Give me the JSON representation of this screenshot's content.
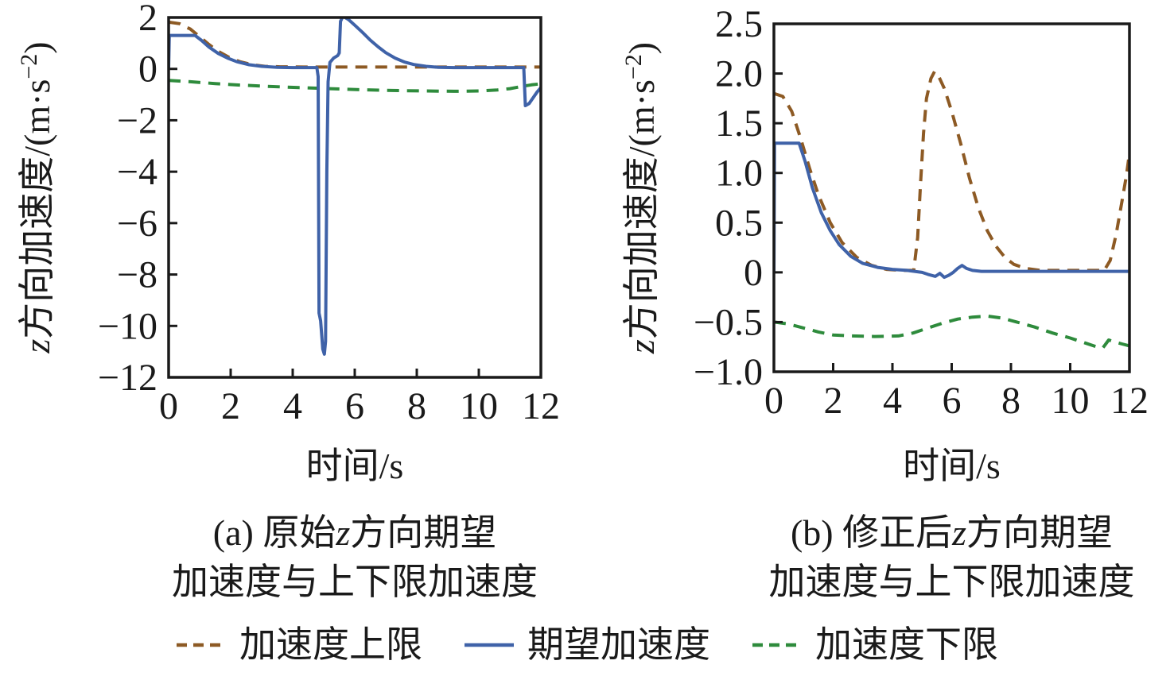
{
  "colors": {
    "background": "#ffffff",
    "axis": "#1a1a1a",
    "text": "#1a1a1a",
    "blue": "#3f62a8",
    "brown": "#8d5a24",
    "green": "#2e8b3c"
  },
  "legend": {
    "items": [
      {
        "key": "upper-limit",
        "label": "加速度上限",
        "color": "#8d5a24",
        "dashed": true
      },
      {
        "key": "desired-accel",
        "label": "期望加速度",
        "color": "#3f62a8",
        "dashed": false
      },
      {
        "key": "lower-limit",
        "label": "加速度下限",
        "color": "#2e8b3c",
        "dashed": true
      }
    ]
  },
  "chart_data": [
    {
      "id": "a",
      "type": "line",
      "xlabel": "时间/s",
      "ylabel_parts": [
        {
          "t": "z",
          "italic": true
        },
        {
          "t": "方向加速度/(m·s"
        },
        {
          "t": "−2",
          "sup": true
        },
        {
          "t": ")"
        }
      ],
      "caption_lines": [
        [
          {
            "t": "(a) 原始"
          },
          {
            "t": "z",
            "italic": true
          },
          {
            "t": "方向期望"
          }
        ],
        [
          {
            "t": "加速度与上下限加速度"
          }
        ]
      ],
      "xlim": [
        0,
        12
      ],
      "ylim": [
        -12,
        2
      ],
      "xticks": [
        0,
        2,
        4,
        6,
        8,
        10,
        12
      ],
      "xticklabels": [
        "0",
        "2",
        "4",
        "6",
        "8",
        "10",
        "12"
      ],
      "yticks": [
        2,
        0,
        -2,
        -4,
        -6,
        -8,
        -10,
        -12
      ],
      "yticklabels": [
        "2",
        "0",
        "−2",
        "−4",
        "−6",
        "−8",
        "−10",
        "−12"
      ],
      "grid": false,
      "series": [
        {
          "key": "upper-limit",
          "name": "加速度上限",
          "color": "#8d5a24",
          "dashed": true,
          "points": [
            [
              0,
              1.82
            ],
            [
              0.35,
              1.76
            ],
            [
              0.7,
              1.55
            ],
            [
              1.0,
              1.25
            ],
            [
              1.3,
              0.95
            ],
            [
              1.6,
              0.68
            ],
            [
              1.95,
              0.45
            ],
            [
              2.3,
              0.28
            ],
            [
              2.7,
              0.16
            ],
            [
              3.1,
              0.1
            ],
            [
              3.6,
              0.08
            ],
            [
              4.5,
              0.07
            ],
            [
              6,
              0.07
            ],
            [
              8,
              0.07
            ],
            [
              10,
              0.07
            ],
            [
              12,
              0.07
            ]
          ]
        },
        {
          "key": "lower-limit",
          "name": "加速度下限",
          "color": "#2e8b3c",
          "dashed": true,
          "points": [
            [
              0,
              -0.45
            ],
            [
              0.7,
              -0.5
            ],
            [
              1.5,
              -0.57
            ],
            [
              2.3,
              -0.63
            ],
            [
              3.2,
              -0.68
            ],
            [
              4.2,
              -0.73
            ],
            [
              5.2,
              -0.77
            ],
            [
              6.2,
              -0.81
            ],
            [
              7.2,
              -0.84
            ],
            [
              8.2,
              -0.86
            ],
            [
              9.2,
              -0.87
            ],
            [
              10.0,
              -0.86
            ],
            [
              10.6,
              -0.82
            ],
            [
              11.0,
              -0.77
            ],
            [
              11.4,
              -0.68
            ],
            [
              11.7,
              -0.62
            ],
            [
              12,
              -0.58
            ]
          ]
        },
        {
          "key": "desired-accel",
          "name": "期望加速度",
          "color": "#3f62a8",
          "dashed": false,
          "points": [
            [
              0,
              0
            ],
            [
              0.02,
              1.3
            ],
            [
              0.85,
              1.3
            ],
            [
              1.05,
              1.12
            ],
            [
              1.3,
              0.85
            ],
            [
              1.6,
              0.6
            ],
            [
              1.9,
              0.42
            ],
            [
              2.2,
              0.28
            ],
            [
              2.6,
              0.16
            ],
            [
              3.0,
              0.1
            ],
            [
              3.5,
              0.06
            ],
            [
              4.0,
              0.05
            ],
            [
              4.78,
              0.05
            ],
            [
              4.82,
              -0.3
            ],
            [
              4.85,
              -9.5
            ],
            [
              4.9,
              -9.8
            ],
            [
              4.97,
              -10.9
            ],
            [
              5.02,
              -11.1
            ],
            [
              5.06,
              -10.6
            ],
            [
              5.1,
              -4.0
            ],
            [
              5.14,
              -0.5
            ],
            [
              5.2,
              0.25
            ],
            [
              5.32,
              0.42
            ],
            [
              5.45,
              0.52
            ],
            [
              5.5,
              0.62
            ],
            [
              5.54,
              1.85
            ],
            [
              5.62,
              2.05
            ],
            [
              5.8,
              1.92
            ],
            [
              6.0,
              1.7
            ],
            [
              6.25,
              1.42
            ],
            [
              6.5,
              1.12
            ],
            [
              6.75,
              0.86
            ],
            [
              7.0,
              0.63
            ],
            [
              7.3,
              0.42
            ],
            [
              7.6,
              0.27
            ],
            [
              7.9,
              0.17
            ],
            [
              8.3,
              0.1
            ],
            [
              8.7,
              0.06
            ],
            [
              9.2,
              0.05
            ],
            [
              10,
              0.05
            ],
            [
              11.45,
              0.05
            ],
            [
              11.5,
              -1.43
            ],
            [
              11.62,
              -1.35
            ],
            [
              11.75,
              -1.12
            ],
            [
              11.88,
              -0.9
            ],
            [
              12,
              -0.73
            ]
          ]
        }
      ]
    },
    {
      "id": "b",
      "type": "line",
      "xlabel": "时间/s",
      "ylabel_parts": [
        {
          "t": "z",
          "italic": true
        },
        {
          "t": "方向加速度/(m·s"
        },
        {
          "t": "−2",
          "sup": true
        },
        {
          "t": ")"
        }
      ],
      "caption_lines": [
        [
          {
            "t": "(b) 修正后"
          },
          {
            "t": "z",
            "italic": true
          },
          {
            "t": "方向期望"
          }
        ],
        [
          {
            "t": "加速度与上下限加速度"
          }
        ]
      ],
      "xlim": [
        0,
        12
      ],
      "ylim": [
        -1.0,
        2.5
      ],
      "xticks": [
        0,
        2,
        4,
        6,
        8,
        10,
        12
      ],
      "xticklabels": [
        "0",
        "2",
        "4",
        "6",
        "8",
        "10",
        "12"
      ],
      "yticks": [
        2.5,
        2.0,
        1.5,
        1.0,
        0.5,
        0,
        -0.5,
        -1.0
      ],
      "yticklabels": [
        "2.5",
        "2.0",
        "1.5",
        "1.0",
        "0.5",
        "0",
        "−0.5",
        "−1.0"
      ],
      "grid": false,
      "series": [
        {
          "key": "upper-limit",
          "name": "加速度上限",
          "color": "#8d5a24",
          "dashed": true,
          "points": [
            [
              0,
              1.8
            ],
            [
              0.3,
              1.77
            ],
            [
              0.6,
              1.62
            ],
            [
              0.9,
              1.35
            ],
            [
              1.2,
              1.05
            ],
            [
              1.5,
              0.78
            ],
            [
              1.9,
              0.5
            ],
            [
              2.3,
              0.3
            ],
            [
              2.8,
              0.15
            ],
            [
              3.3,
              0.07
            ],
            [
              3.8,
              0.03
            ],
            [
              4.3,
              0.02
            ],
            [
              4.72,
              0.02
            ],
            [
              4.85,
              0.35
            ],
            [
              4.95,
              0.9
            ],
            [
              5.05,
              1.4
            ],
            [
              5.15,
              1.75
            ],
            [
              5.3,
              1.95
            ],
            [
              5.42,
              2.02
            ],
            [
              5.55,
              1.98
            ],
            [
              5.75,
              1.85
            ],
            [
              6.0,
              1.62
            ],
            [
              6.3,
              1.3
            ],
            [
              6.6,
              0.95
            ],
            [
              6.9,
              0.65
            ],
            [
              7.2,
              0.42
            ],
            [
              7.5,
              0.26
            ],
            [
              7.8,
              0.15
            ],
            [
              8.1,
              0.08
            ],
            [
              8.5,
              0.04
            ],
            [
              9.0,
              0.02
            ],
            [
              10,
              0.02
            ],
            [
              11.15,
              0.02
            ],
            [
              11.35,
              0.12
            ],
            [
              11.55,
              0.38
            ],
            [
              11.75,
              0.72
            ],
            [
              11.9,
              0.98
            ],
            [
              12,
              1.2
            ]
          ]
        },
        {
          "key": "lower-limit",
          "name": "加速度下限",
          "color": "#2e8b3c",
          "dashed": true,
          "points": [
            [
              0,
              -0.5
            ],
            [
              0.5,
              -0.52
            ],
            [
              1.0,
              -0.56
            ],
            [
              1.5,
              -0.6
            ],
            [
              2.0,
              -0.63
            ],
            [
              2.6,
              -0.64
            ],
            [
              3.4,
              -0.645
            ],
            [
              4.2,
              -0.64
            ],
            [
              4.7,
              -0.61
            ],
            [
              5.2,
              -0.56
            ],
            [
              5.7,
              -0.51
            ],
            [
              6.2,
              -0.47
            ],
            [
              6.7,
              -0.45
            ],
            [
              7.2,
              -0.44
            ],
            [
              7.7,
              -0.46
            ],
            [
              8.2,
              -0.5
            ],
            [
              8.8,
              -0.55
            ],
            [
              9.4,
              -0.61
            ],
            [
              10.0,
              -0.66
            ],
            [
              10.5,
              -0.71
            ],
            [
              10.9,
              -0.75
            ],
            [
              11.1,
              -0.76
            ],
            [
              11.3,
              -0.68
            ],
            [
              11.5,
              -0.7
            ],
            [
              11.75,
              -0.72
            ],
            [
              12,
              -0.74
            ]
          ]
        },
        {
          "key": "desired-accel",
          "name": "期望加速度",
          "color": "#3f62a8",
          "dashed": false,
          "points": [
            [
              0,
              0
            ],
            [
              0.02,
              1.3
            ],
            [
              0.85,
              1.3
            ],
            [
              1.05,
              1.12
            ],
            [
              1.3,
              0.85
            ],
            [
              1.6,
              0.6
            ],
            [
              1.9,
              0.42
            ],
            [
              2.2,
              0.28
            ],
            [
              2.6,
              0.16
            ],
            [
              3.0,
              0.09
            ],
            [
              3.5,
              0.05
            ],
            [
              4.0,
              0.03
            ],
            [
              4.5,
              0.02
            ],
            [
              5.0,
              0.0
            ],
            [
              5.2,
              -0.02
            ],
            [
              5.45,
              -0.04
            ],
            [
              5.6,
              -0.01
            ],
            [
              5.75,
              -0.05
            ],
            [
              5.9,
              -0.03
            ],
            [
              6.05,
              0.0
            ],
            [
              6.2,
              0.04
            ],
            [
              6.35,
              0.07
            ],
            [
              6.5,
              0.04
            ],
            [
              6.7,
              0.02
            ],
            [
              7.0,
              0.01
            ],
            [
              8,
              0.01
            ],
            [
              10,
              0.01
            ],
            [
              12,
              0.01
            ]
          ]
        }
      ]
    }
  ]
}
